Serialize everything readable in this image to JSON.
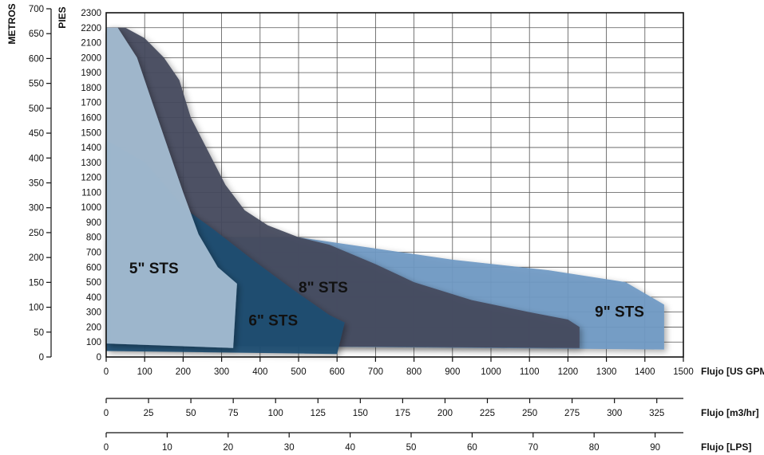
{
  "chart_data": {
    "type": "area",
    "y_axis_left_label": "METROS",
    "y_axis_right_label": "PIES",
    "metros_ticks": [
      0,
      50,
      100,
      150,
      200,
      250,
      300,
      350,
      400,
      450,
      500,
      550,
      600,
      650,
      700
    ],
    "pies_ticks": [
      0,
      100,
      200,
      300,
      400,
      500,
      600,
      700,
      800,
      900,
      1000,
      1100,
      1200,
      1300,
      1400,
      1500,
      1600,
      1700,
      1800,
      1900,
      2000,
      2100,
      2200,
      2300
    ],
    "x_axes": [
      {
        "label": "Flujo [US GPM]",
        "ticks": [
          0,
          100,
          200,
          300,
          400,
          500,
          600,
          700,
          800,
          900,
          1000,
          1100,
          1200,
          1300,
          1400,
          1500
        ]
      },
      {
        "label": "Flujo [m3/hr]",
        "ticks": [
          0,
          25,
          50,
          75,
          100,
          125,
          150,
          175,
          200,
          225,
          250,
          275,
          300,
          325
        ]
      },
      {
        "label": "Flujo [LPS]",
        "ticks": [
          0,
          10,
          20,
          30,
          40,
          50,
          60,
          70,
          80,
          90
        ]
      }
    ],
    "xlim_gpm": [
      0,
      1500
    ],
    "ylim_pies": [
      0,
      2300
    ],
    "grid": true,
    "series": [
      {
        "name": "9\" STS",
        "color": "#6f9ac4",
        "points": [
          [
            0,
            0
          ],
          [
            0,
            800
          ],
          [
            500,
            800
          ],
          [
            900,
            650
          ],
          [
            1150,
            580
          ],
          [
            1350,
            500
          ],
          [
            1450,
            350
          ],
          [
            1450,
            50
          ],
          [
            0,
            80
          ]
        ]
      },
      {
        "name": "8\" STS",
        "color": "#45495c",
        "points": [
          [
            0,
            80
          ],
          [
            0,
            2200
          ],
          [
            50,
            2200
          ],
          [
            100,
            2130
          ],
          [
            150,
            2000
          ],
          [
            190,
            1850
          ],
          [
            220,
            1600
          ],
          [
            260,
            1400
          ],
          [
            310,
            1150
          ],
          [
            360,
            980
          ],
          [
            420,
            880
          ],
          [
            500,
            800
          ],
          [
            580,
            750
          ],
          [
            700,
            620
          ],
          [
            800,
            500
          ],
          [
            950,
            380
          ],
          [
            1100,
            300
          ],
          [
            1200,
            250
          ],
          [
            1230,
            200
          ],
          [
            1230,
            60
          ],
          [
            0,
            80
          ]
        ]
      },
      {
        "name": "6\" STS",
        "color": "#1f4e72",
        "points": [
          [
            0,
            80
          ],
          [
            0,
            1450
          ],
          [
            100,
            1300
          ],
          [
            200,
            1000
          ],
          [
            280,
            850
          ],
          [
            380,
            650
          ],
          [
            480,
            460
          ],
          [
            580,
            280
          ],
          [
            620,
            230
          ],
          [
            600,
            20
          ],
          [
            0,
            40
          ]
        ]
      },
      {
        "name": "5\" STS",
        "color": "#a5bdd3",
        "points": [
          [
            0,
            80
          ],
          [
            0,
            2200
          ],
          [
            30,
            2200
          ],
          [
            80,
            2000
          ],
          [
            120,
            1700
          ],
          [
            160,
            1400
          ],
          [
            200,
            1100
          ],
          [
            240,
            820
          ],
          [
            290,
            600
          ],
          [
            340,
            490
          ],
          [
            330,
            60
          ],
          [
            0,
            90
          ]
        ]
      }
    ],
    "labels": [
      {
        "text": "5\" STS",
        "gpm": 60,
        "pies": 560
      },
      {
        "text": "6\" STS",
        "gpm": 370,
        "pies": 210
      },
      {
        "text": "8\" STS",
        "gpm": 500,
        "pies": 430
      },
      {
        "text": "9\" STS",
        "gpm": 1270,
        "pies": 270
      }
    ]
  }
}
